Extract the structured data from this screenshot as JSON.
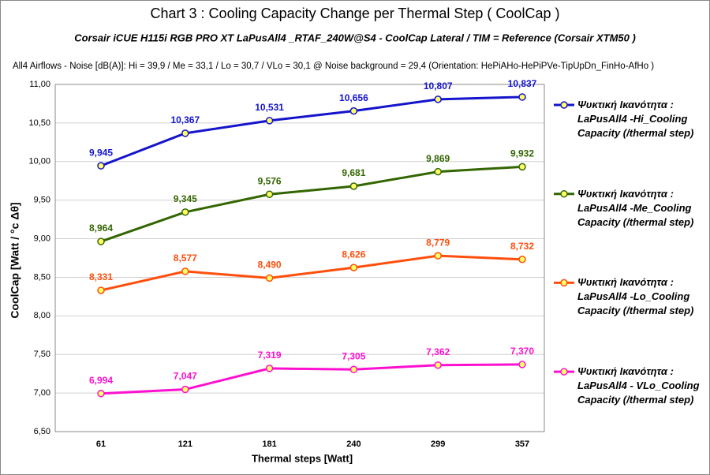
{
  "chart_data": {
    "type": "line",
    "title": "Chart 3 :  Cooling Capacity Change per Thermal Step ( CoolCap )",
    "subtitle": "Corsair iCUE H115i RGB PRO XT  LaPusAll4 _RTAF_240W@S4  -  CoolCap  Lateral    /  TIM =  Reference   (Corsair XTM50 )",
    "note": "All4 Airflows  -  Noise [dB(A)]: Hi = 39,9 / Me = 33,1 / Lo = 30,7 / VLo = 30,1 @ Noise background = 29,4    (Orientation: HePiAHo-HePiPVe-TipUpDn_FinHo-AfHo  )",
    "x_label": "Thermal steps  [Watt]",
    "y_label": "CoolCap   [Watt / °c Δθ]",
    "categories": [
      "61",
      "121",
      "181",
      "240",
      "299",
      "357"
    ],
    "ylim": [
      6.5,
      11.0
    ],
    "yticks": [
      {
        "value": 6.5,
        "label": "6,50"
      },
      {
        "value": 7.0,
        "label": "7,00"
      },
      {
        "value": 7.5,
        "label": "7,50"
      },
      {
        "value": 8.0,
        "label": "8,00"
      },
      {
        "value": 8.5,
        "label": "8,50"
      },
      {
        "value": 9.0,
        "label": "9,00"
      },
      {
        "value": 9.5,
        "label": "9,50"
      },
      {
        "value": 10.0,
        "label": "10,00"
      },
      {
        "value": 10.5,
        "label": "10,50"
      },
      {
        "value": 11.0,
        "label": "11,00"
      }
    ],
    "grid": true,
    "legend": "right",
    "series": [
      {
        "name": "Ψυκτική Ικανότητα : LaPusAll4 -Hi_Cooling Capacity (/thermal step)",
        "color": "#1414cc",
        "values": [
          9.945,
          10.367,
          10.531,
          10.656,
          10.807,
          10.837
        ],
        "value_labels": [
          "9,945",
          "10,367",
          "10,531",
          "10,656",
          "10,807",
          "10,837"
        ]
      },
      {
        "name": "Ψυκτική Ικανότητα : LaPusAll4 -Me_Cooling Capacity (/thermal step)",
        "color": "#336600",
        "values": [
          8.964,
          9.345,
          9.576,
          9.681,
          9.869,
          9.932
        ],
        "value_labels": [
          "8,964",
          "9,345",
          "9,576",
          "9,681",
          "9,869",
          "9,932"
        ]
      },
      {
        "name": "Ψυκτική Ικανότητα : LaPusAll4 -Lo_Cooling Capacity (/thermal step)",
        "color": "#ff4e0c",
        "values": [
          8.331,
          8.577,
          8.49,
          8.626,
          8.779,
          8.732
        ],
        "value_labels": [
          "8,331",
          "8,577",
          "8,490",
          "8,626",
          "8,779",
          "8,732"
        ]
      },
      {
        "name": "Ψυκτική Ικανότητα : LaPusAll4 - VLo_Cooling Capacity (/thermal step)",
        "color": "#ff10d0",
        "values": [
          6.994,
          7.047,
          7.319,
          7.305,
          7.362,
          7.37
        ],
        "value_labels": [
          "6,994",
          "7,047",
          "7,319",
          "7,305",
          "7,362",
          "7,370"
        ]
      }
    ]
  }
}
